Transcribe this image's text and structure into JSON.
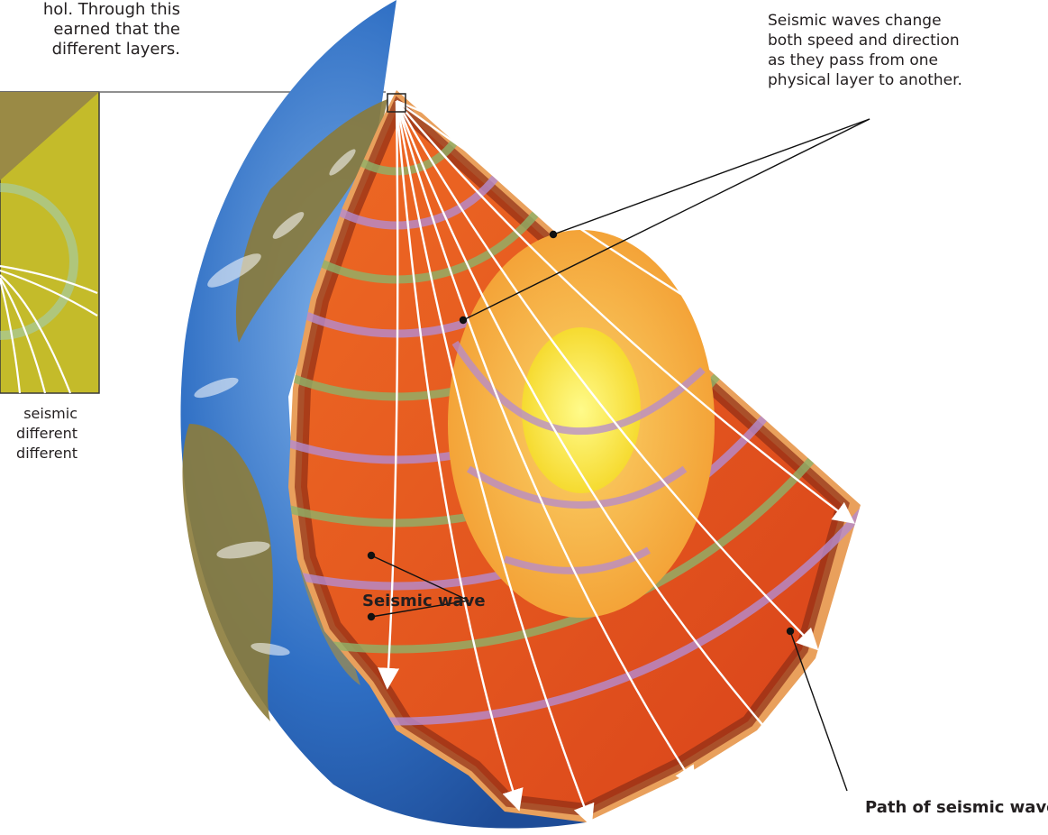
{
  "intro_text": {
    "lines": [
      "hol. Through this",
      "earned that the",
      "different layers."
    ]
  },
  "inset_caption": {
    "lines": [
      "seismic",
      "different",
      "different"
    ]
  },
  "note_text": {
    "lines": [
      "Seismic waves change",
      "both speed and direction",
      "as they pass from one",
      "physical layer to another."
    ]
  },
  "labels": {
    "seismic_wave": "Seismic wave",
    "path_of_seismic_wave": "Path of seismic wave"
  },
  "colors": {
    "ocean": "#2f6fc4",
    "land": "#8a7a3a",
    "crust": "#e9a05c",
    "mantle": "#e8501a",
    "mantle_band": "#8f2e16",
    "outer_core": "#f6b43a",
    "inner_core": "#f7e22a",
    "wave_green": "#8fb26a",
    "wave_purple": "#b58bd0",
    "inset_bg": "#c4bb2a"
  }
}
